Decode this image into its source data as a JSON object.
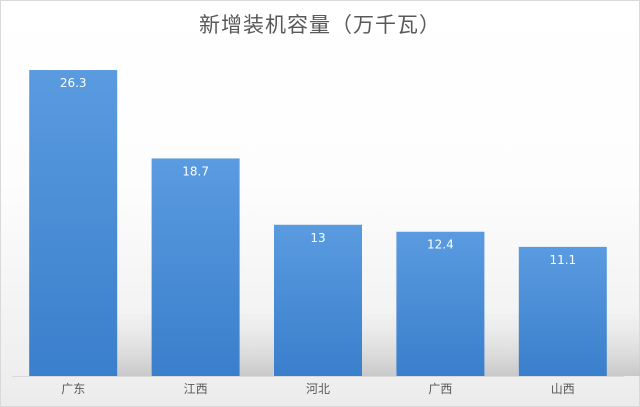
{
  "chart_data": {
    "type": "bar",
    "title": "新增装机容量（万千瓦）",
    "categories": [
      "广东",
      "江西",
      "河北",
      "广西",
      "山西"
    ],
    "values": [
      26.3,
      18.7,
      13,
      12.4,
      11.1
    ],
    "value_labels": [
      "26.3",
      "18.7",
      "13",
      "12.4",
      "11.1"
    ],
    "ylim": [
      0,
      30
    ],
    "grid": false,
    "legend": "none",
    "bar_color": "#4a8fd6",
    "label_color": "#ffffff",
    "axis_text_color": "#595959"
  }
}
